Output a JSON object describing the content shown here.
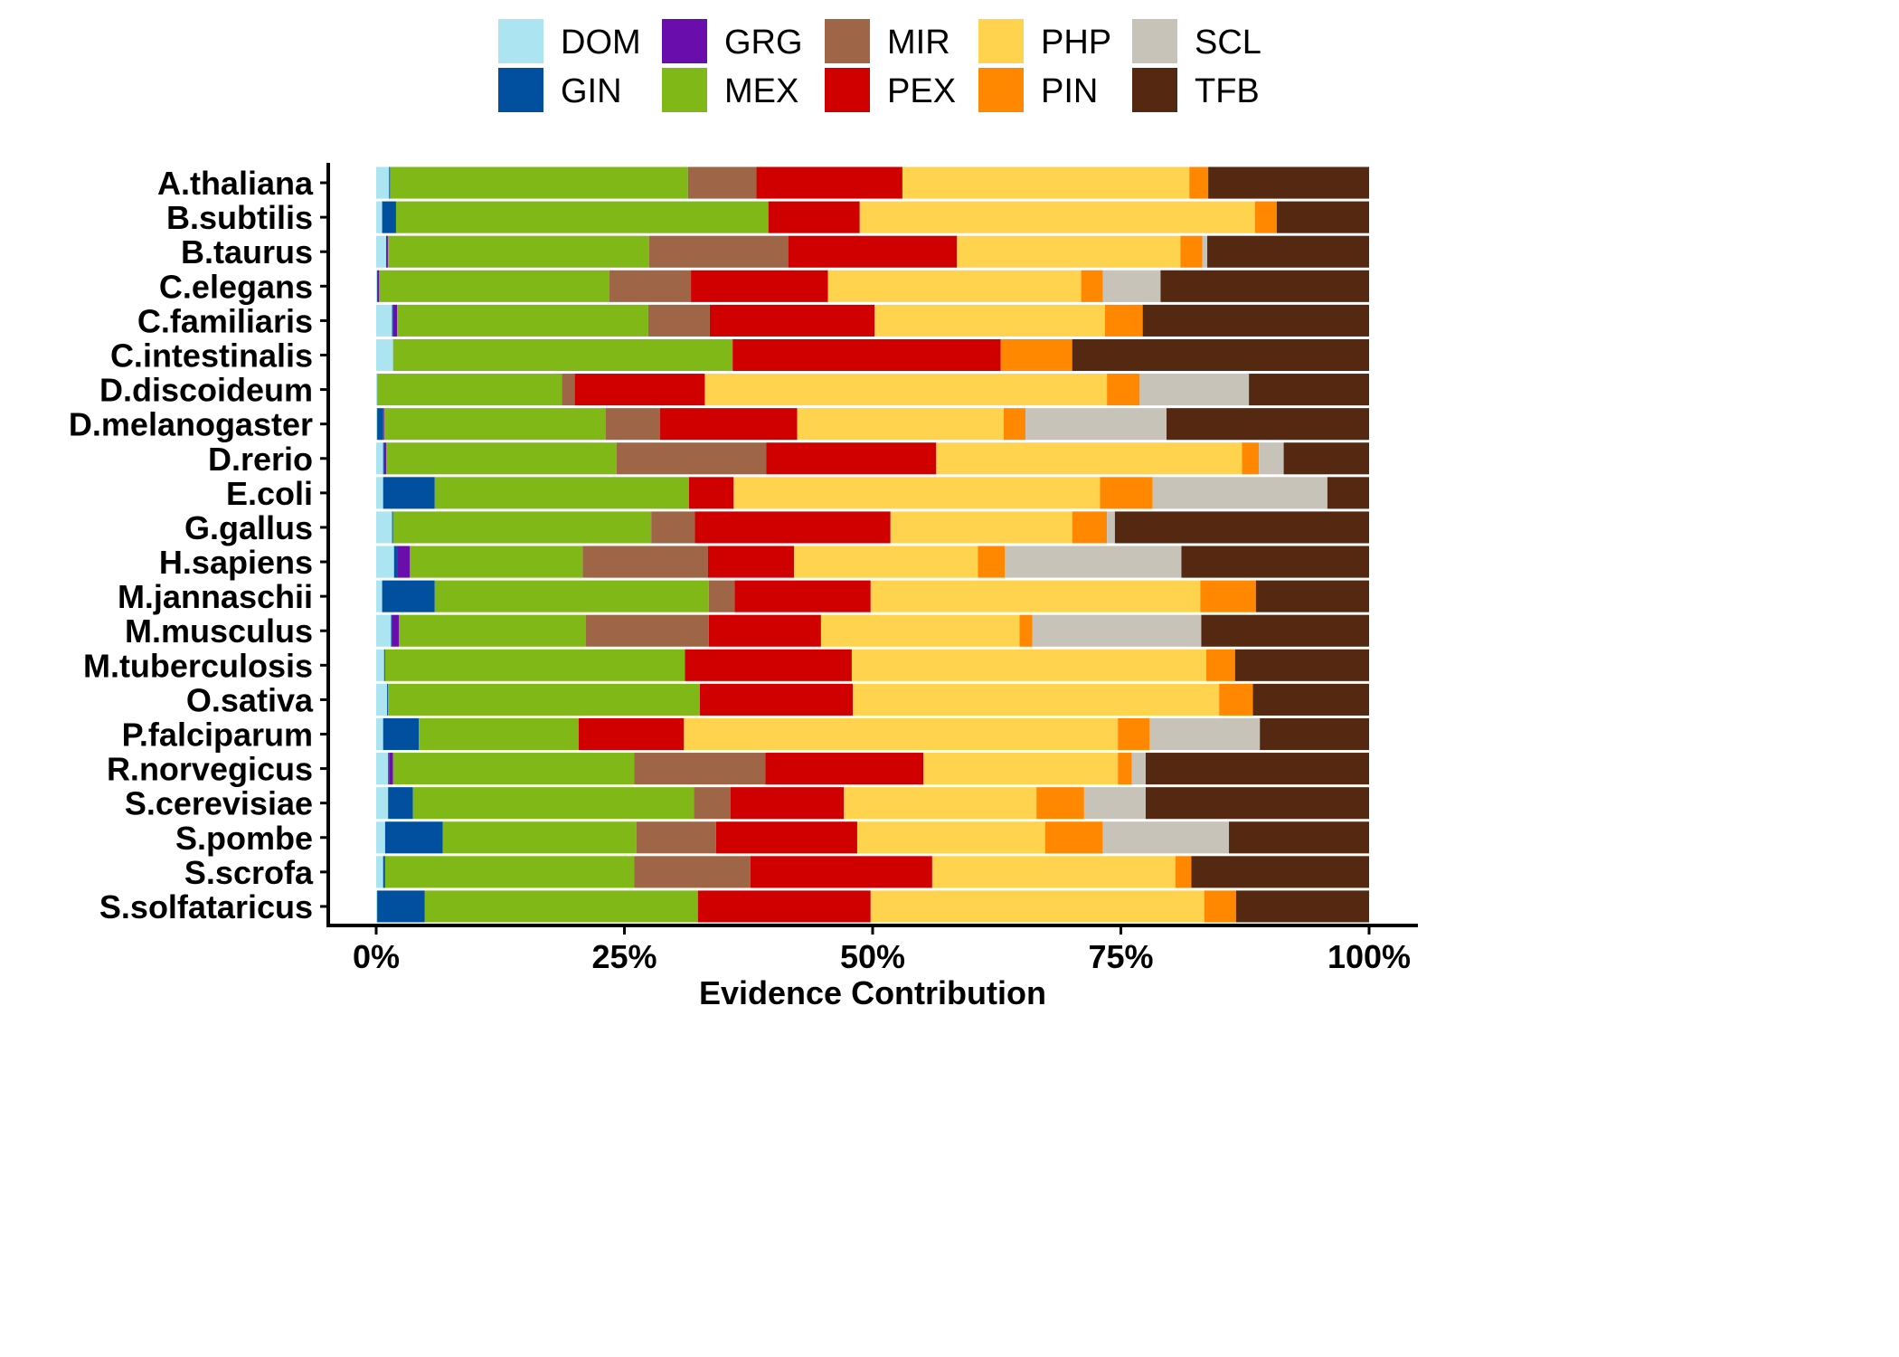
{
  "chart_data": {
    "type": "bar",
    "orientation": "horizontal",
    "stacked": "percent",
    "xlabel": "Evidence Contribution",
    "ylabel": "",
    "xlim": [
      0,
      1
    ],
    "xticks": [
      "0%",
      "25%",
      "50%",
      "75%",
      "100%"
    ],
    "legend_position": "top",
    "grid": false,
    "categories": [
      "A.thaliana",
      "B.subtilis",
      "B.taurus",
      "C.elegans",
      "C.familiaris",
      "C.intestinalis",
      "D.discoideum",
      "D.melanogaster",
      "D.rerio",
      "E.coli",
      "G.gallus",
      "H.sapiens",
      "M.jannaschii",
      "M.musculus",
      "M.tuberculosis",
      "O.sativa",
      "P.falciparum",
      "R.norvegicus",
      "S.cerevisiae",
      "S.pombe",
      "S.scrofa",
      "S.solfataricus"
    ],
    "series": [
      {
        "name": "DOM",
        "color": "#ade4f2",
        "values": [
          0.013,
          0.006,
          0.01,
          0.001,
          0.016,
          0.017,
          0.001,
          0.001,
          0.007,
          0.007,
          0.016,
          0.018,
          0.006,
          0.015,
          0.008,
          0.011,
          0.007,
          0.012,
          0.012,
          0.009,
          0.007,
          0.001
        ]
      },
      {
        "name": "GIN",
        "color": "#0050a0",
        "values": [
          0.001,
          0.014,
          0.001,
          0.0,
          0.001,
          0.0,
          0.0,
          0.006,
          0.001,
          0.052,
          0.001,
          0.003,
          0.053,
          0.001,
          0.001,
          0.001,
          0.036,
          0.001,
          0.025,
          0.058,
          0.002,
          0.048
        ]
      },
      {
        "name": "GRG",
        "color": "#6a0dad",
        "values": [
          0.0,
          0.0,
          0.001,
          0.002,
          0.004,
          0.0,
          0.0,
          0.001,
          0.002,
          0.0,
          0.0,
          0.013,
          0.0,
          0.007,
          0.0,
          0.0,
          0.0,
          0.004,
          0.0,
          0.0,
          0.0,
          0.0
        ]
      },
      {
        "name": "MEX",
        "color": "#80b818",
        "values": [
          0.3,
          0.375,
          0.263,
          0.232,
          0.253,
          0.342,
          0.186,
          0.223,
          0.232,
          0.256,
          0.26,
          0.174,
          0.276,
          0.188,
          0.302,
          0.314,
          0.161,
          0.243,
          0.283,
          0.195,
          0.251,
          0.275
        ]
      },
      {
        "name": "MIR",
        "color": "#9e6647",
        "values": [
          0.069,
          0.0,
          0.14,
          0.082,
          0.062,
          0.0,
          0.013,
          0.055,
          0.151,
          0.0,
          0.044,
          0.126,
          0.026,
          0.124,
          0.0,
          0.0,
          0.0,
          0.132,
          0.037,
          0.08,
          0.117,
          0.0
        ]
      },
      {
        "name": "PEX",
        "color": "#d00000",
        "values": [
          0.147,
          0.092,
          0.17,
          0.138,
          0.166,
          0.27,
          0.131,
          0.138,
          0.171,
          0.045,
          0.197,
          0.087,
          0.137,
          0.113,
          0.168,
          0.154,
          0.106,
          0.159,
          0.114,
          0.142,
          0.183,
          0.174
        ]
      },
      {
        "name": "PHP",
        "color": "#ffd34d",
        "values": [
          0.289,
          0.398,
          0.225,
          0.255,
          0.232,
          0.0,
          0.405,
          0.208,
          0.308,
          0.369,
          0.183,
          0.185,
          0.332,
          0.2,
          0.357,
          0.369,
          0.437,
          0.196,
          0.194,
          0.189,
          0.245,
          0.336
        ]
      },
      {
        "name": "PIN",
        "color": "#ff8800",
        "values": [
          0.019,
          0.022,
          0.022,
          0.022,
          0.038,
          0.072,
          0.033,
          0.022,
          0.017,
          0.053,
          0.035,
          0.027,
          0.056,
          0.013,
          0.029,
          0.034,
          0.032,
          0.014,
          0.048,
          0.058,
          0.016,
          0.032
        ]
      },
      {
        "name": "SCL",
        "color": "#c7c3b9",
        "values": [
          0.0,
          0.0,
          0.005,
          0.058,
          0.0,
          0.0,
          0.11,
          0.142,
          0.025,
          0.176,
          0.008,
          0.178,
          0.0,
          0.17,
          0.0,
          0.0,
          0.111,
          0.014,
          0.062,
          0.127,
          0.0,
          0.0
        ]
      },
      {
        "name": "TFB",
        "color": "#552811",
        "values": [
          0.162,
          0.093,
          0.163,
          0.21,
          0.228,
          0.299,
          0.121,
          0.204,
          0.086,
          0.042,
          0.256,
          0.189,
          0.114,
          0.169,
          0.135,
          0.117,
          0.11,
          0.225,
          0.225,
          0.141,
          0.179,
          0.134
        ]
      }
    ]
  }
}
